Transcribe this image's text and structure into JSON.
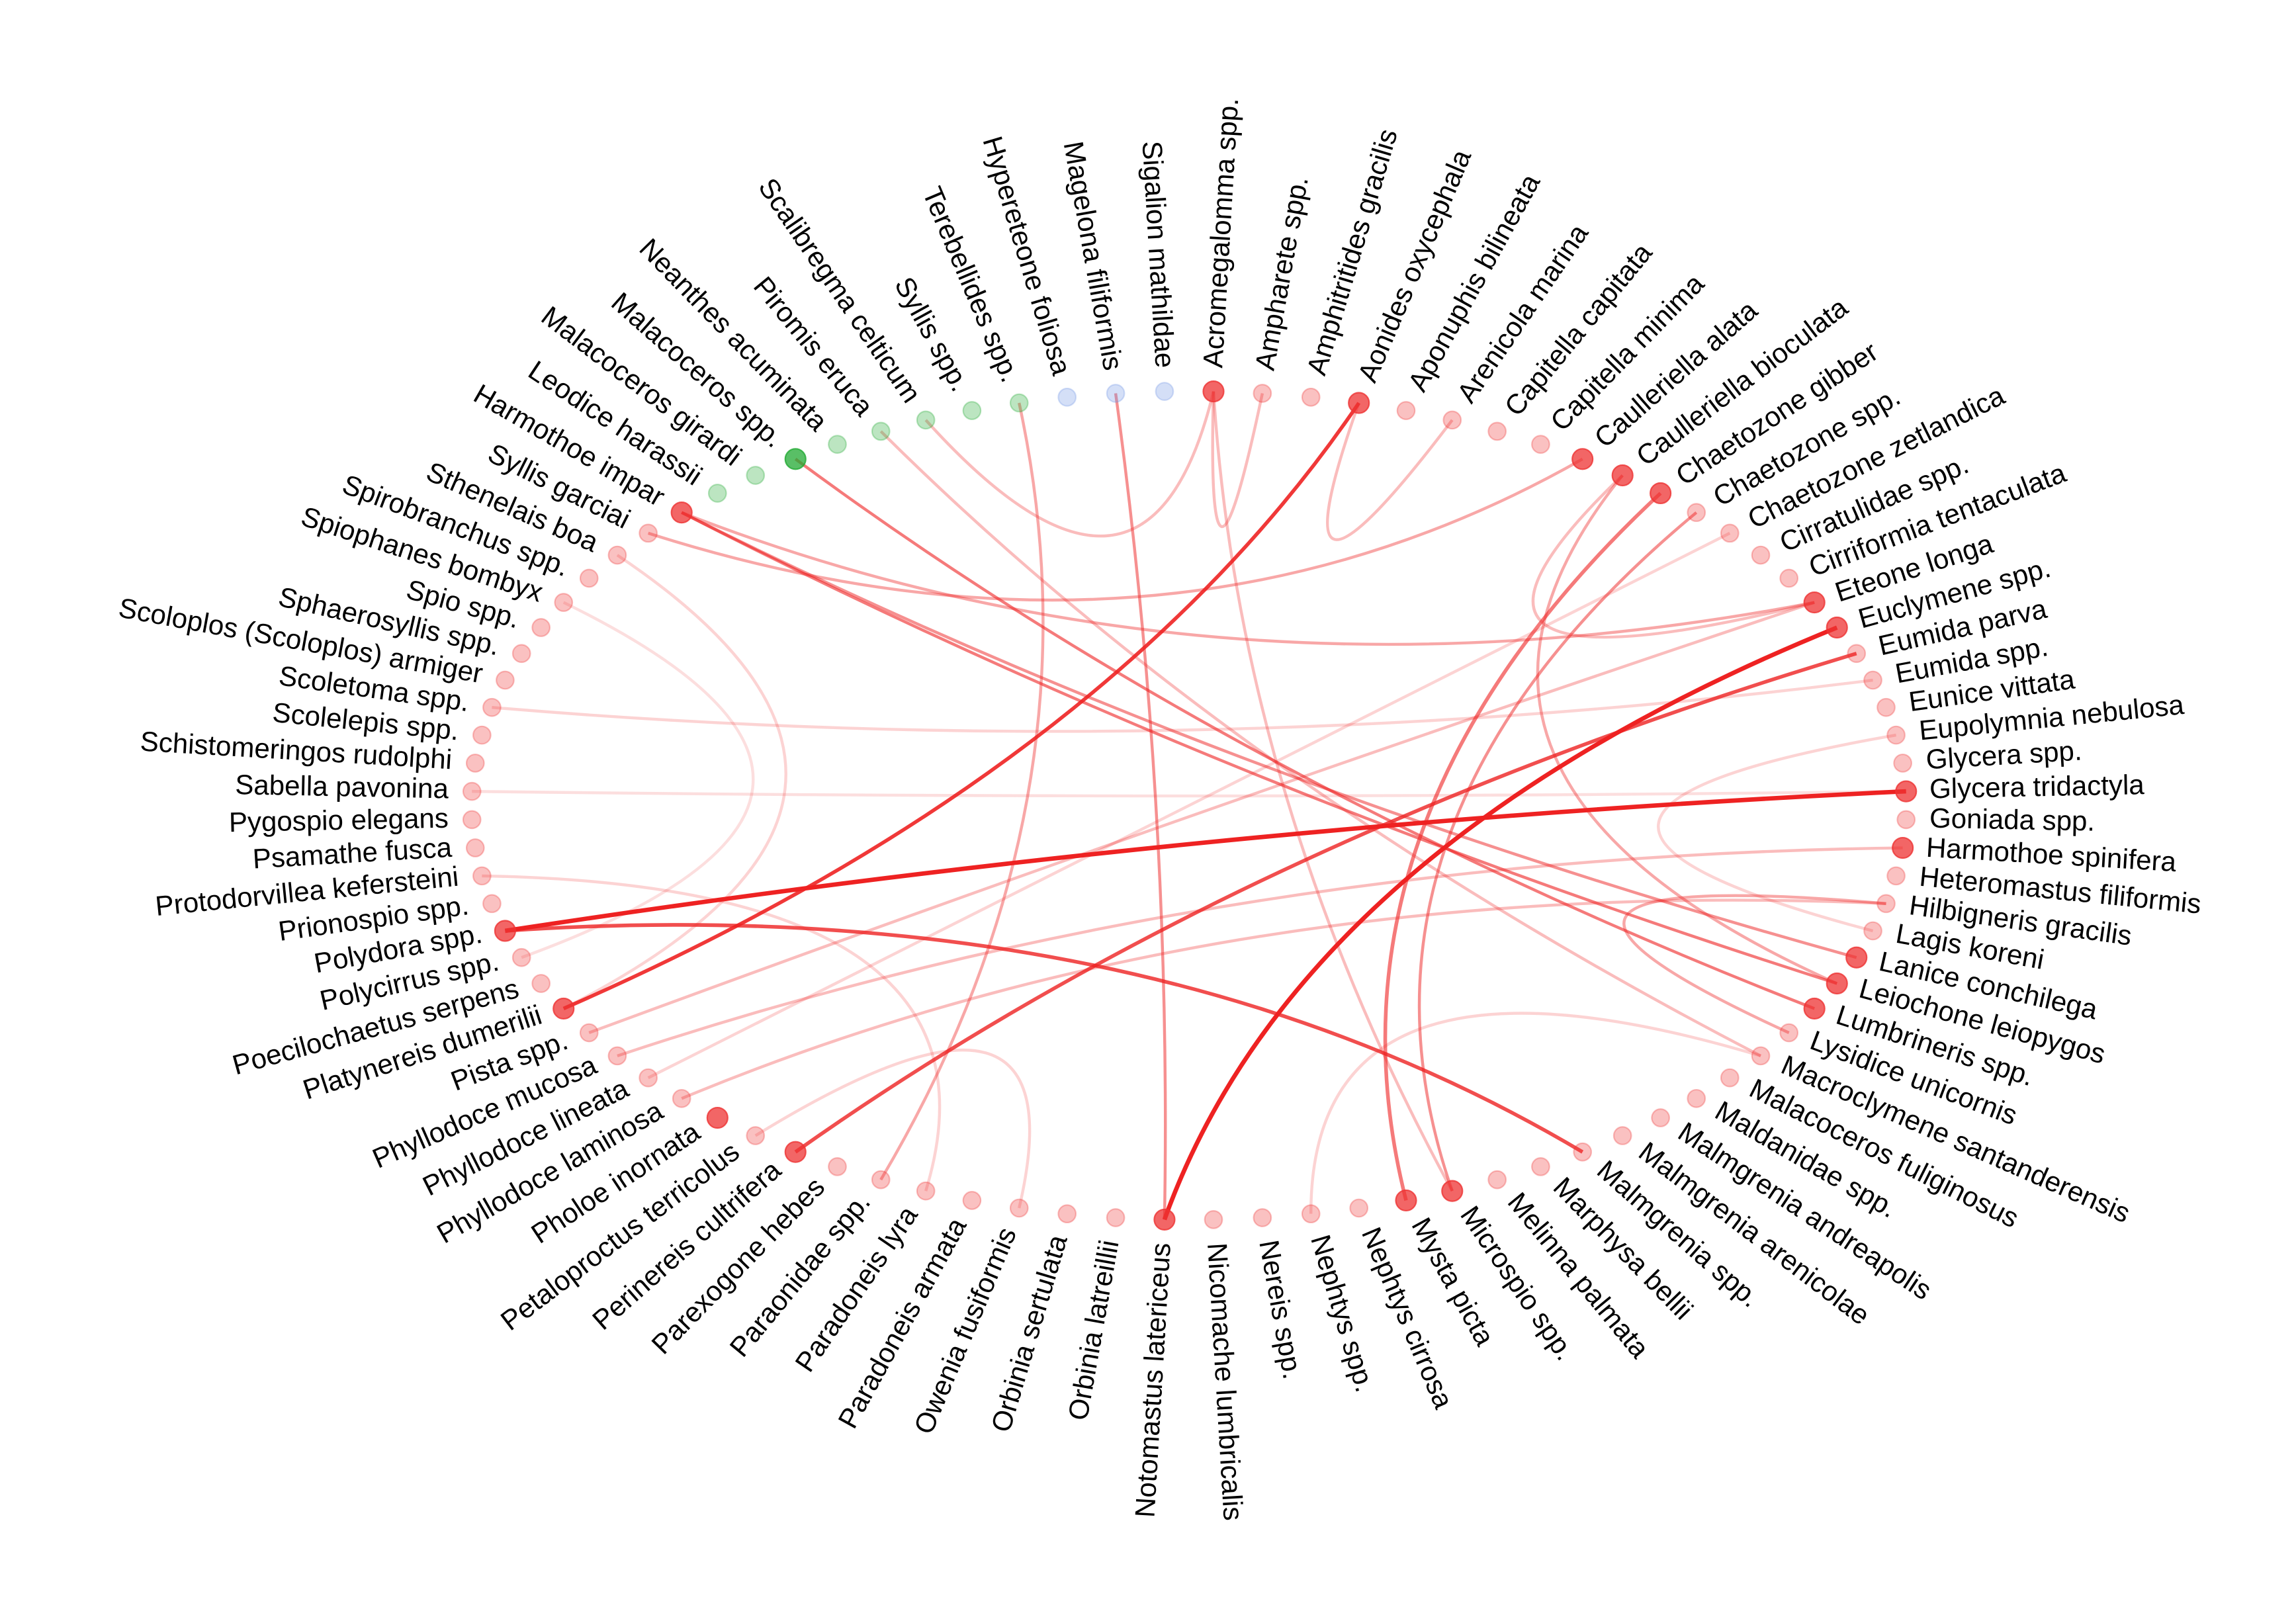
{
  "nodes": [
    {
      "label": "Acromegalomma spp."
    },
    {
      "label": "Ampharete spp."
    },
    {
      "label": "Amphitritides gracilis"
    },
    {
      "label": "Aonides oxycephala"
    },
    {
      "label": "Aponuphis bilineata"
    },
    {
      "label": "Arenicola marina"
    },
    {
      "label": "Capitella capitata"
    },
    {
      "label": "Capitella minima"
    },
    {
      "label": "Caulleriella alata"
    },
    {
      "label": "Caulleriella bioculata"
    },
    {
      "label": "Chaetozone gibber"
    },
    {
      "label": "Chaetozone spp."
    },
    {
      "label": "Chaetozone zetlandica"
    },
    {
      "label": "Cirratulidae spp."
    },
    {
      "label": "Cirriformia tentaculata"
    },
    {
      "label": "Eteone longa"
    },
    {
      "label": "Euclymene spp."
    },
    {
      "label": "Eumida parva"
    },
    {
      "label": "Eumida spp."
    },
    {
      "label": "Eunice vittata"
    },
    {
      "label": "Eupolymnia nebulosa"
    },
    {
      "label": "Glycera spp."
    },
    {
      "label": "Glycera tridactyla"
    },
    {
      "label": "Goniada spp."
    },
    {
      "label": "Harmothoe spinifera"
    },
    {
      "label": "Heteromastus filiformis"
    },
    {
      "label": "Hilbigneris gracilis"
    },
    {
      "label": "Lagis koreni"
    },
    {
      "label": "Lanice conchilega"
    },
    {
      "label": "Leiochone leiopygos"
    },
    {
      "label": "Lumbrineris spp."
    },
    {
      "label": "Lysidice unicornis"
    },
    {
      "label": "Macroclymene santanderensis"
    },
    {
      "label": "Malacoceros fuliginosus"
    },
    {
      "label": "Maldanidae spp."
    },
    {
      "label": "Malmgrenia andreapolis"
    },
    {
      "label": "Malmgrenia arenicolae"
    },
    {
      "label": "Malmgrenia spp."
    },
    {
      "label": "Marphysa bellii"
    },
    {
      "label": "Melinna palmata"
    },
    {
      "label": "Microspio spp."
    },
    {
      "label": "Mysta picta"
    },
    {
      "label": "Nephtys cirrosa"
    },
    {
      "label": "Nephtys spp."
    },
    {
      "label": "Nereis spp."
    },
    {
      "label": "Nicomache lumbricalis"
    },
    {
      "label": "Notomastus latericeus"
    },
    {
      "label": "Orbinia latreillii"
    },
    {
      "label": "Orbinia sertulata"
    },
    {
      "label": "Owenia fusiformis"
    },
    {
      "label": "Paradoneis armata"
    },
    {
      "label": "Paradoneis lyra"
    },
    {
      "label": "Paraonidae spp."
    },
    {
      "label": "Parexogone hebes"
    },
    {
      "label": "Perinereis cultrifera"
    },
    {
      "label": "Petaloproctus terricolus"
    },
    {
      "label": "Pholoe inornata"
    },
    {
      "label": "Phyllodoce laminosa"
    },
    {
      "label": "Phyllodoce lineata"
    },
    {
      "label": "Phyllodoce mucosa"
    },
    {
      "label": "Pista spp."
    },
    {
      "label": "Platynereis dumerilii"
    },
    {
      "label": "Poecilochaetus serpens"
    },
    {
      "label": "Polycirrus spp."
    },
    {
      "label": "Polydora spp."
    },
    {
      "label": "Prionospio spp."
    },
    {
      "label": "Protodorvillea kefersteini"
    },
    {
      "label": "Psamathe fusca"
    },
    {
      "label": "Pygospio elegans"
    },
    {
      "label": "Sabella pavonina"
    },
    {
      "label": "Schistomeringos rudolphi"
    },
    {
      "label": "Scolelepis spp."
    },
    {
      "label": "Scoletoma spp."
    },
    {
      "label": "Scoloplos (Scoloplos) armiger"
    },
    {
      "label": "Sphaerosyllis spp."
    },
    {
      "label": "Spio spp."
    },
    {
      "label": "Spiophanes bombyx"
    },
    {
      "label": "Spirobranchus spp."
    },
    {
      "label": "Sthenelais boa"
    },
    {
      "label": "Syllis garciai"
    },
    {
      "label": "Harmothoe impar"
    },
    {
      "label": "Leodice harassii"
    },
    {
      "label": "Malacoceros girardi"
    },
    {
      "label": "Malacoceros spp."
    },
    {
      "label": "Neanthes acuminata"
    },
    {
      "label": "Piromis eruca"
    },
    {
      "label": "Scalibregma celticum"
    },
    {
      "label": "Syllis spp."
    },
    {
      "label": "Terebellides spp."
    },
    {
      "label": "Hypereteone foliosa"
    },
    {
      "label": "Magelona filiformis"
    },
    {
      "label": "Sigalion mathildae"
    }
  ]
}
